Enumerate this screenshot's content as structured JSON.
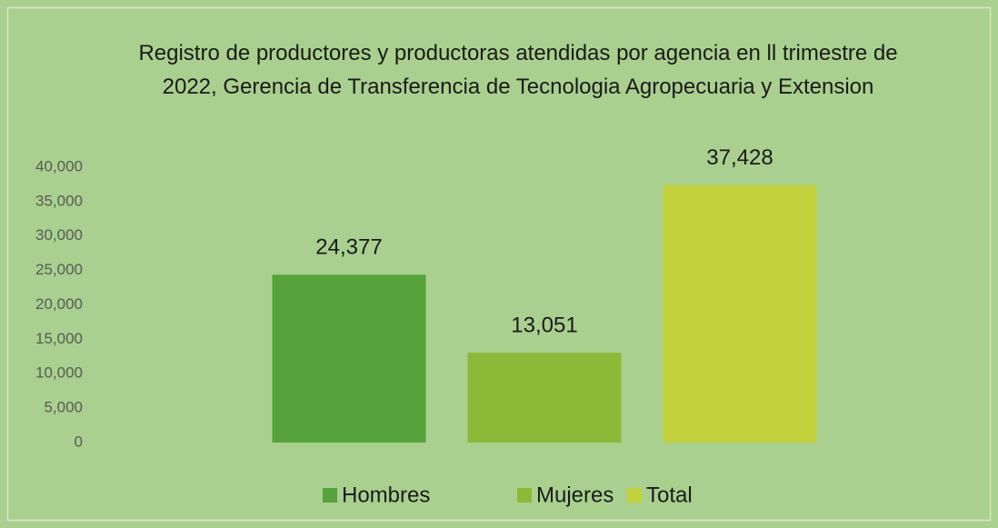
{
  "chart_data": {
    "type": "bar",
    "title": "Registro de productores y productoras atendidas por agencia en ll trimestre de 2022, Gerencia de Transferencia de Tecnologia Agropecuaria y Extension",
    "categories": [
      null
    ],
    "series": [
      {
        "name": "Hombres",
        "color": "#56a23b",
        "values": [
          24377
        ],
        "value_labels": [
          "24,377"
        ]
      },
      {
        "name": "Mujeres",
        "color": "#8db939",
        "values": [
          13051
        ],
        "value_labels": [
          "13,051"
        ]
      },
      {
        "name": "Total",
        "color": "#c3d13d",
        "values": [
          37428
        ],
        "value_labels": [
          "37,428"
        ]
      }
    ],
    "ylim": [
      0,
      40000
    ],
    "yticks": [
      0,
      {
        "value": 5000,
        "label": "5,000"
      },
      {
        "value": 10000,
        "label": "10,000"
      },
      {
        "value": 15000,
        "label": "15,000"
      },
      {
        "value": 20000,
        "label": "20,000"
      },
      {
        "value": 25000,
        "label": "25,000"
      },
      {
        "value": 30000,
        "label": "30,000"
      },
      {
        "value": 35000,
        "label": "35,000"
      },
      {
        "value": 40000,
        "label": "40,000"
      }
    ],
    "grid": false,
    "legend": "bottom"
  }
}
